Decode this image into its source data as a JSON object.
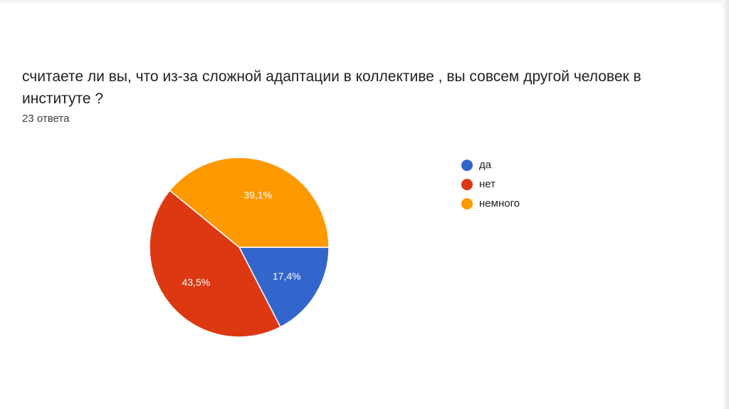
{
  "question": "считаете ли вы, что из-за сложной адаптации в коллективе , вы совсем другой человек в институте ?",
  "responses": "23 ответа",
  "colors": {
    "да": "#3366cc",
    "нет": "#dc3912",
    "немного": "#ff9900"
  },
  "chart_data": {
    "type": "pie",
    "categories": [
      "да",
      "нет",
      "немного"
    ],
    "values": [
      17.4,
      43.5,
      39.1
    ],
    "labels": [
      "17,4%",
      "43,5%",
      "39,1%"
    ],
    "colors": [
      "#3366cc",
      "#dc3912",
      "#ff9900"
    ],
    "legend_position": "right"
  }
}
